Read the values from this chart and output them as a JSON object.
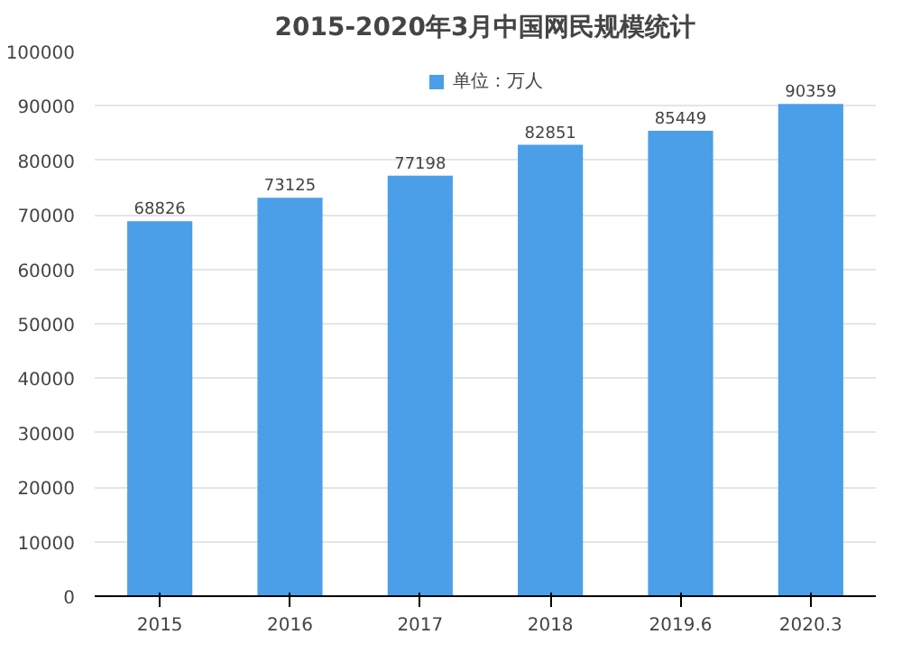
{
  "chart_data": {
    "type": "bar",
    "title": "2015-2020年3月中国网民规模统计",
    "categories": [
      "2015",
      "2016",
      "2017",
      "2018",
      "2019.6",
      "2020.3"
    ],
    "series": [
      {
        "name": "单位：万人",
        "color": "#4a9fe8",
        "values": [
          68826,
          73125,
          77198,
          82851,
          85449,
          90359
        ]
      }
    ],
    "ylim": [
      0,
      100000
    ],
    "yticks": [
      0,
      10000,
      20000,
      30000,
      40000,
      50000,
      60000,
      70000,
      80000,
      90000,
      100000
    ],
    "grid": "y",
    "legend": "top",
    "data_labels": true
  }
}
